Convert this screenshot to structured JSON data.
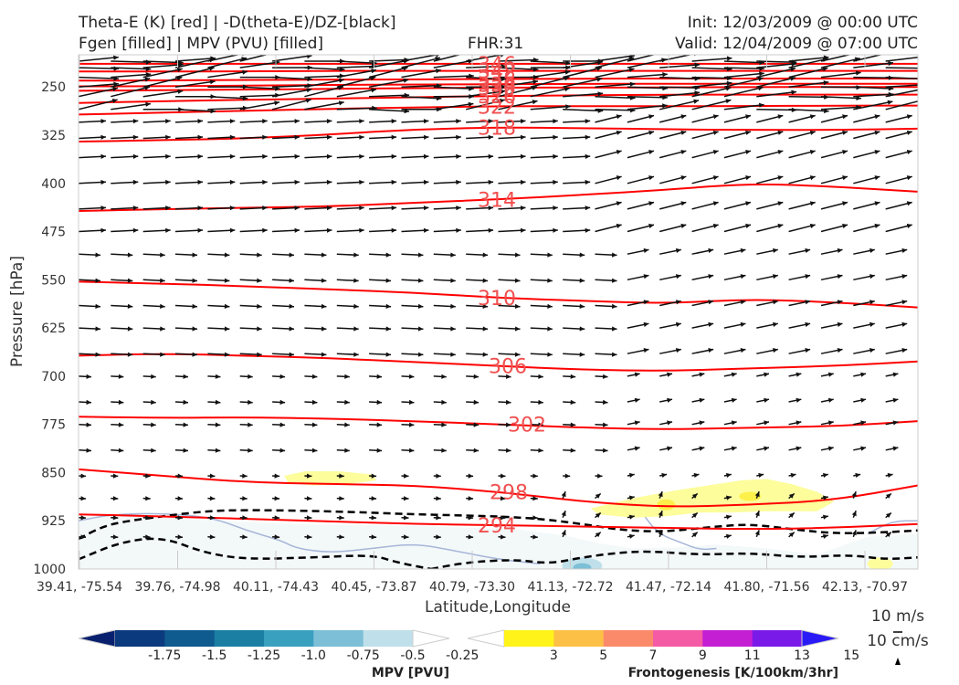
{
  "header": {
    "line1_left": "Theta-E (K) [red] | -D(theta-E)/DZ-[black]",
    "line2_left": "Fgen [filled] | MPV (PVU) [filled]",
    "center": "FHR:31",
    "init": "Init: 12/03/2009 @ 00:00 UTC",
    "valid": "Valid: 12/04/2009 @ 07:00 UTC"
  },
  "chart_data": {
    "type": "cross-section",
    "xlabel": "Latitude,Longitude",
    "ylabel": "Pressure [hPa]",
    "ylim": [
      1000,
      200
    ],
    "y_ticks": [
      250,
      325,
      400,
      475,
      550,
      625,
      700,
      775,
      850,
      925,
      1000
    ],
    "x_ticks": [
      "39.41, -75.54",
      "39.76, -74.98",
      "40.11, -74.43",
      "40.45, -73.87",
      "40.79, -73.30",
      "41.13, -72.72",
      "41.47, -72.14",
      "41.80, -71.56",
      "42.13, -70.97"
    ],
    "theta_e_color": "#ff0000",
    "theta_e_contours": [
      {
        "level": "294",
        "p": [
          915,
          918,
          922,
          926,
          930,
          932,
          934,
          936,
          938,
          936,
          930
        ]
      },
      {
        "level": "298",
        "p": [
          845,
          855,
          865,
          868,
          870,
          880,
          895,
          904,
          900,
          893,
          870
        ]
      },
      {
        "level": "302",
        "p": [
          763,
          765,
          764,
          766,
          770,
          775,
          780,
          783,
          780,
          778,
          770
        ]
      },
      {
        "level": "306",
        "p": [
          668,
          665,
          668,
          672,
          678,
          684,
          690,
          692,
          688,
          684,
          677
        ]
      },
      {
        "level": "310",
        "p": [
          553,
          556,
          560,
          565,
          570,
          578,
          583,
          587,
          580,
          585,
          593
        ]
      },
      {
        "level": "314",
        "p": [
          443,
          440,
          438,
          436,
          430,
          425,
          418,
          410,
          400,
          405,
          413
        ]
      },
      {
        "level": "318",
        "p": [
          335,
          333,
          330,
          324,
          316,
          313,
          314,
          316,
          317,
          317,
          315
        ]
      },
      {
        "level": "322",
        "p": [
          293,
          290,
          287,
          284,
          282,
          280,
          280,
          280,
          280,
          279,
          279
        ]
      },
      {
        "level": "326",
        "p": [
          275,
          272,
          270,
          268,
          266,
          264,
          263,
          262,
          262,
          262,
          262
        ]
      },
      {
        "level": "330",
        "p": [
          256,
          255,
          254,
          253,
          252,
          251,
          251,
          251,
          250,
          250,
          250
        ]
      },
      {
        "level": "334",
        "p": [
          249,
          249,
          248,
          247,
          246,
          246,
          245,
          245,
          245,
          245,
          245
        ]
      },
      {
        "level": "338",
        "p": [
          240,
          240,
          239,
          239,
          238,
          238,
          237,
          237,
          237,
          237,
          237
        ]
      },
      {
        "level": "342",
        "p": [
          226,
          226,
          226,
          225,
          225,
          225,
          225,
          225,
          225,
          225,
          225
        ]
      },
      {
        "level": "346",
        "p": [
          214,
          214,
          214,
          214,
          214,
          214,
          214,
          214,
          214,
          214,
          214
        ]
      }
    ],
    "theta_e_labels": [
      "294",
      "298",
      "302",
      "306",
      "310",
      "314",
      "318",
      "322",
      "326",
      "330",
      "334",
      "338",
      "342",
      "346"
    ],
    "wind_reference": [
      "10 m/s",
      "10 cm/s"
    ],
    "mpv_colorbar": {
      "title": "MPV [PVU]",
      "ticks": [
        "-1.75",
        "-1.5",
        "-1.25",
        "-1.0",
        "-0.75",
        "-0.5",
        "-0.25"
      ],
      "colors": [
        "#08206e",
        "#0c3a7e",
        "#0f5a8e",
        "#1a7fa3",
        "#3aa0c0",
        "#7dbfd6",
        "#bfe0ea",
        "#ffffff"
      ]
    },
    "fgen_colorbar": {
      "title": "Frontogenesis [K/100km/3hr]",
      "ticks": [
        "3",
        "5",
        "7",
        "9",
        "11",
        "13",
        "15"
      ],
      "colors": [
        "#ffffff",
        "#fff31a",
        "#fdc046",
        "#fb8a6a",
        "#f55aa5",
        "#c41fd2",
        "#7a1ae8",
        "#2a1af5"
      ]
    }
  }
}
